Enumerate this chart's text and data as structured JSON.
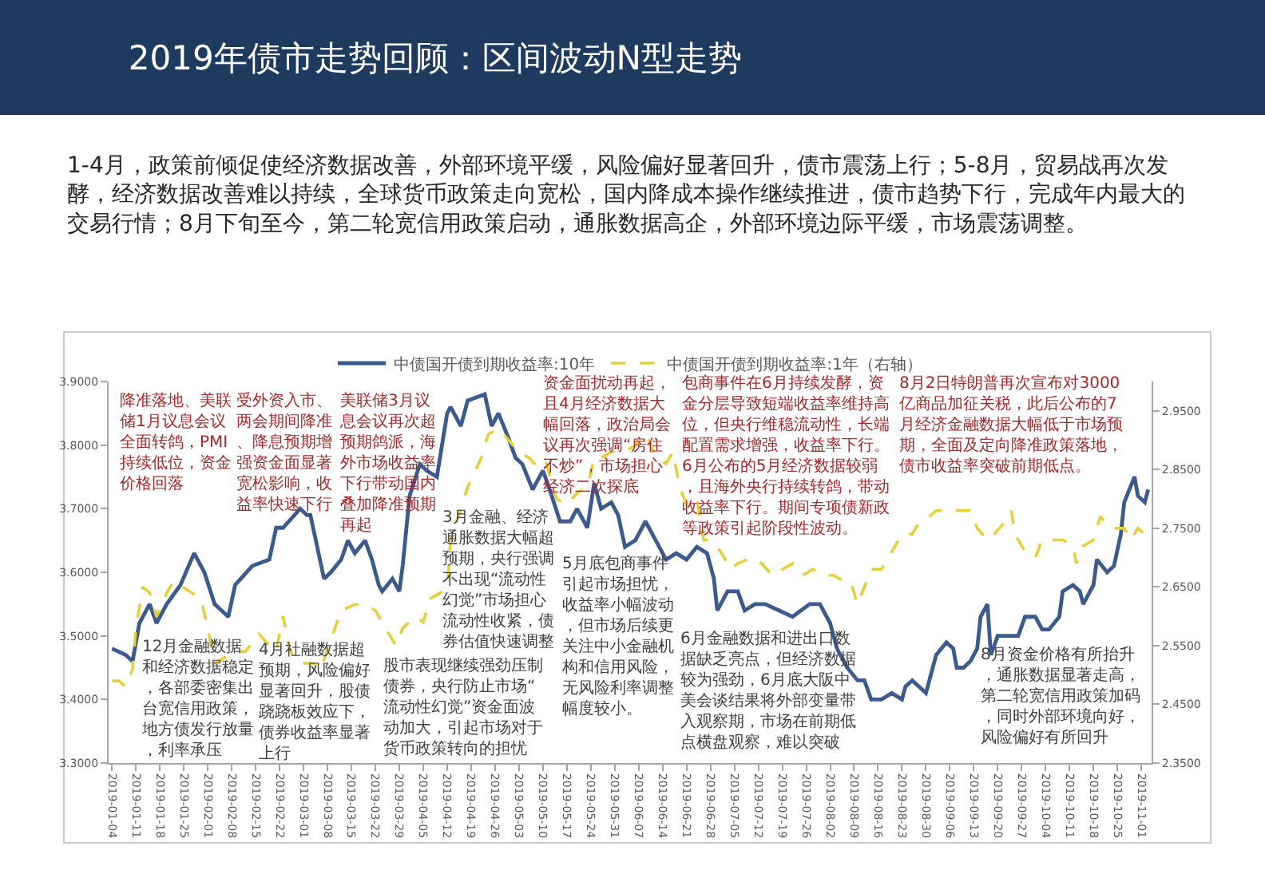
{
  "chart_data": {
    "type": "line",
    "title": "2019年债市走势回顾：区间波动N型走势",
    "subtitle": "1-4月，政策前倾促使经济数据改善，外部环境平缓，风险偏好显著回升，债市震荡上行；5-8月，贸易战再次发酵，经济数据改善难以持续，全球货币政策走向宽松，国内降成本操作继续推进，债市趋势下行，完成年内最大的交易行情；8月下旬至今，第二轮宽信用政策启动，通胀数据高企，外部环境边际平缓，市场震荡调整。",
    "series": [
      {
        "name": "中债国开债到期收益率:10年",
        "color": "#3b5a8e",
        "line_style": "solid",
        "x": [
          "2019-01-04",
          "2019-01-08",
          "2019-01-10",
          "2019-01-12",
          "2019-01-15",
          "2019-01-17",
          "2019-01-20",
          "2019-01-24",
          "2019-01-28",
          "2019-01-31",
          "2019-02-03",
          "2019-02-07",
          "2019-02-09",
          "2019-02-14",
          "2019-02-19",
          "2019-02-21",
          "2019-02-23",
          "2019-02-28",
          "2019-03-02",
          "2019-03-03",
          "2019-03-07",
          "2019-03-09",
          "2019-03-12",
          "2019-03-14",
          "2019-03-16",
          "2019-03-19",
          "2019-03-21",
          "2019-03-23",
          "2019-03-24",
          "2019-03-27",
          "2019-03-29",
          "2019-03-30",
          "2019-04-01",
          "2019-04-04",
          "2019-04-06",
          "2019-04-09",
          "2019-04-12",
          "2019-04-13",
          "2019-04-16",
          "2019-04-18",
          "2019-04-23",
          "2019-04-25",
          "2019-04-27",
          "2019-04-30",
          "2019-05-02",
          "2019-05-04",
          "2019-05-07",
          "2019-05-10",
          "2019-05-12",
          "2019-05-15",
          "2019-05-18",
          "2019-05-20",
          "2019-05-23",
          "2019-05-25",
          "2019-05-27",
          "2019-05-30",
          "2019-06-01",
          "2019-06-03",
          "2019-06-06",
          "2019-06-09",
          "2019-06-12",
          "2019-06-15",
          "2019-06-18",
          "2019-06-21",
          "2019-06-24",
          "2019-06-27",
          "2019-06-29",
          "2019-06-30",
          "2019-07-03",
          "2019-07-06",
          "2019-07-08",
          "2019-07-11",
          "2019-07-14",
          "2019-07-18",
          "2019-07-22",
          "2019-07-27",
          "2019-07-30",
          "2019-08-02",
          "2019-08-04",
          "2019-08-07",
          "2019-08-10",
          "2019-08-12",
          "2019-08-14",
          "2019-08-17",
          "2019-08-20",
          "2019-08-23",
          "2019-08-24",
          "2019-08-26",
          "2019-08-30",
          "2019-09-02",
          "2019-09-05",
          "2019-09-07",
          "2019-09-08",
          "2019-09-10",
          "2019-09-12",
          "2019-09-14",
          "2019-09-15",
          "2019-09-17",
          "2019-09-18",
          "2019-09-20",
          "2019-09-24",
          "2019-09-26",
          "2019-09-28",
          "2019-10-01",
          "2019-10-03",
          "2019-10-05",
          "2019-10-08",
          "2019-10-09",
          "2019-10-12",
          "2019-10-14",
          "2019-10-15",
          "2019-10-18",
          "2019-10-19",
          "2019-10-22",
          "2019-10-24",
          "2019-10-26",
          "2019-10-27",
          "2019-10-30",
          "2019-10-31",
          "2019-11-02",
          "2019-11-03"
        ],
        "values": [
          3.48,
          3.47,
          3.46,
          3.52,
          3.55,
          3.52,
          3.55,
          3.58,
          3.63,
          3.6,
          3.55,
          3.53,
          3.58,
          3.61,
          3.62,
          3.67,
          3.67,
          3.7,
          3.69,
          3.69,
          3.59,
          3.6,
          3.62,
          3.65,
          3.63,
          3.65,
          3.62,
          3.58,
          3.57,
          3.59,
          3.57,
          3.61,
          3.72,
          3.77,
          3.76,
          3.75,
          3.85,
          3.86,
          3.83,
          3.87,
          3.88,
          3.83,
          3.85,
          3.81,
          3.78,
          3.77,
          3.73,
          3.76,
          3.73,
          3.68,
          3.68,
          3.7,
          3.67,
          3.74,
          3.7,
          3.71,
          3.69,
          3.64,
          3.65,
          3.68,
          3.65,
          3.62,
          3.63,
          3.62,
          3.64,
          3.63,
          3.59,
          3.54,
          3.57,
          3.57,
          3.54,
          3.55,
          3.55,
          3.54,
          3.53,
          3.55,
          3.55,
          3.52,
          3.48,
          3.45,
          3.43,
          3.43,
          3.4,
          3.4,
          3.41,
          3.4,
          3.42,
          3.43,
          3.41,
          3.47,
          3.49,
          3.48,
          3.45,
          3.45,
          3.46,
          3.48,
          3.53,
          3.55,
          3.47,
          3.5,
          3.5,
          3.5,
          3.53,
          3.53,
          3.51,
          3.51,
          3.53,
          3.57,
          3.58,
          3.57,
          3.55,
          3.58,
          3.62,
          3.6,
          3.61,
          3.66,
          3.71,
          3.75,
          3.72,
          3.71,
          3.73
        ]
      },
      {
        "name": "中债国开债到期收益率:1年（右轴）",
        "color": "#e6cf3c",
        "line_style": "dashed",
        "axis": "y2",
        "x": [
          "2019-01-04",
          "2019-01-06",
          "2019-01-08",
          "2019-01-10",
          "2019-01-11",
          "2019-01-13",
          "2019-01-15",
          "2019-01-17",
          "2019-01-20",
          "2019-01-22",
          "2019-01-30",
          "2019-02-01",
          "2019-02-03",
          "2019-02-06",
          "2019-02-09",
          "2019-02-12",
          "2019-02-16",
          "2019-02-19",
          "2019-02-21",
          "2019-02-23",
          "2019-02-25",
          "2019-02-28",
          "2019-03-04",
          "2019-03-06",
          "2019-03-09",
          "2019-03-12",
          "2019-03-16",
          "2019-03-19",
          "2019-03-22",
          "2019-03-25",
          "2019-03-28",
          "2019-03-30",
          "2019-04-03",
          "2019-04-05",
          "2019-04-07",
          "2019-04-10",
          "2019-04-12",
          "2019-04-13",
          "2019-04-18",
          "2019-04-22",
          "2019-04-24",
          "2019-04-27",
          "2019-04-30",
          "2019-05-03",
          "2019-05-06",
          "2019-05-09",
          "2019-05-11",
          "2019-05-14",
          "2019-05-17",
          "2019-05-20",
          "2019-05-23",
          "2019-05-25",
          "2019-05-27",
          "2019-05-30",
          "2019-06-02",
          "2019-06-06",
          "2019-06-08",
          "2019-06-10",
          "2019-06-12",
          "2019-06-15",
          "2019-06-17",
          "2019-06-19",
          "2019-06-21",
          "2019-06-24",
          "2019-06-26",
          "2019-06-28",
          "2019-07-01",
          "2019-07-04",
          "2019-07-06",
          "2019-07-10",
          "2019-07-13",
          "2019-07-16",
          "2019-07-19",
          "2019-07-22",
          "2019-07-25",
          "2019-07-28",
          "2019-07-31",
          "2019-08-03",
          "2019-08-06",
          "2019-08-08",
          "2019-08-10",
          "2019-08-14",
          "2019-08-17",
          "2019-08-20",
          "2019-08-23",
          "2019-08-26",
          "2019-08-28",
          "2019-08-31",
          "2019-09-02",
          "2019-09-05",
          "2019-09-08",
          "2019-09-12",
          "2019-09-14",
          "2019-09-17",
          "2019-09-19",
          "2019-09-22",
          "2019-09-24",
          "2019-09-25",
          "2019-09-28",
          "2019-10-01",
          "2019-10-03",
          "2019-10-06",
          "2019-10-09",
          "2019-10-12",
          "2019-10-13",
          "2019-10-15",
          "2019-10-18",
          "2019-10-20",
          "2019-10-23",
          "2019-10-25",
          "2019-10-27",
          "2019-10-29",
          "2019-10-31",
          "2019-11-02"
        ],
        "values": [
          2.49,
          2.49,
          2.48,
          2.51,
          2.58,
          2.65,
          2.64,
          2.6,
          2.64,
          2.66,
          2.63,
          2.58,
          2.52,
          2.53,
          2.54,
          2.54,
          2.57,
          2.55,
          2.54,
          2.6,
          2.54,
          2.52,
          2.52,
          2.51,
          2.56,
          2.61,
          2.62,
          2.62,
          2.61,
          2.58,
          2.55,
          2.58,
          2.6,
          2.59,
          2.63,
          2.64,
          2.65,
          2.73,
          2.82,
          2.87,
          2.91,
          2.92,
          2.9,
          2.88,
          2.87,
          2.85,
          2.86,
          2.8,
          2.79,
          2.81,
          2.82,
          2.87,
          2.87,
          2.88,
          2.88,
          2.89,
          2.91,
          2.9,
          2.87,
          2.86,
          2.88,
          2.82,
          2.79,
          2.8,
          2.73,
          2.73,
          2.71,
          2.68,
          2.69,
          2.7,
          2.69,
          2.67,
          2.68,
          2.69,
          2.67,
          2.68,
          2.67,
          2.67,
          2.66,
          2.66,
          2.62,
          2.68,
          2.68,
          2.71,
          2.74,
          2.74,
          2.76,
          2.77,
          2.78,
          2.78,
          2.78,
          2.78,
          2.75,
          2.73,
          2.74,
          2.76,
          2.78,
          2.74,
          2.71,
          2.7,
          2.73,
          2.73,
          2.73,
          2.72,
          2.69,
          2.72,
          2.73,
          2.77,
          2.75,
          2.75,
          2.75,
          2.73,
          2.75,
          2.74
        ]
      }
    ],
    "xlim": [
      "2019-01-03",
      "2019-11-04"
    ],
    "xticks": [
      "2019-01-04",
      "2019-01-11",
      "2019-01-18",
      "2019-01-25",
      "2019-02-01",
      "2019-02-08",
      "2019-02-15",
      "2019-02-22",
      "2019-03-01",
      "2019-03-08",
      "2019-03-15",
      "2019-03-22",
      "2019-03-29",
      "2019-04-05",
      "2019-04-12",
      "2019-04-19",
      "2019-04-26",
      "2019-05-03",
      "2019-05-10",
      "2019-05-17",
      "2019-05-24",
      "2019-05-31",
      "2019-06-07",
      "2019-06-14",
      "2019-06-21",
      "2019-06-28",
      "2019-07-05",
      "2019-07-12",
      "2019-07-19",
      "2019-07-26",
      "2019-08-02",
      "2019-08-09",
      "2019-08-16",
      "2019-08-23",
      "2019-08-30",
      "2019-09-06",
      "2019-09-13",
      "2019-09-20",
      "2019-09-27",
      "2019-10-04",
      "2019-10-11",
      "2019-10-18",
      "2019-10-25",
      "2019-11-01"
    ],
    "ylim": [
      3.3,
      3.9
    ],
    "yticks": [
      {
        "value": 3.3,
        "label": "3.3000"
      },
      {
        "value": 3.4,
        "label": "3.4000"
      },
      {
        "value": 3.5,
        "label": "3.5000"
      },
      {
        "value": 3.6,
        "label": "3.6000"
      },
      {
        "value": 3.7,
        "label": "3.7000"
      },
      {
        "value": 3.8,
        "label": "3.8000"
      },
      {
        "value": 3.9,
        "label": "3.9000"
      }
    ],
    "y2lim": [
      2.35,
      3.0
    ],
    "y2ticks": [
      {
        "value": 2.35,
        "label": "2.3500"
      },
      {
        "value": 2.45,
        "label": "2.4500"
      },
      {
        "value": 2.55,
        "label": "2.5500"
      },
      {
        "value": 2.65,
        "label": "2.6500"
      },
      {
        "value": 2.75,
        "label": "2.7500"
      },
      {
        "value": 2.85,
        "label": "2.8500"
      },
      {
        "value": 2.95,
        "label": "2.9500"
      }
    ],
    "legend": "top",
    "marker": "none",
    "annotations": [
      "降准落地、美联储1月议息会议全面转鸽，PMI持续低位，资金价格回落",
      "受外资入市、两会期间降准、降息预期增强资金面显著宽松影响，收益率快速下行",
      "美联储3月议息会议再次超预期鸽派，海外市场收益率下行带动国内叠加降准预期再起",
      "资金面扰动再起，且4月经济数据大幅回落，政治局会议再次强调“房住不炒”，市场担心经济二次探底",
      "包商事件在6月持续发酵，资金分层导致短端收益率维持高位，但央行维稳流动性，长端配置需求增强，收益率下行。6月公布的5月经济数据较弱，且海外央行持续转鸽，带动收益率下行。期间专项债新政等政策引起阶段性波动。",
      "8月2日特朗普再次宣布对3000亿商品加征关税，此后公布的7月经济金融数据大幅低于市场预期，全面及定向降准政策落地，债市收益率突破前期低点。",
      "12月金融数据和经济数据稳定，各部委密集出台宽信用政策，地方债发行放量，利率承压",
      "4月社融数据超预期，风险偏好显著回升，股债跷跷板效应下，债券收益率显著上行",
      "股市表现继续强劲压制债券，央行防止市场“流动性幻觉”资金面波动加大，引起市场对于货币政策转向的担忧",
      "3月金融、经济通胀数据大幅超预期，央行强调不出现“流动性幻觉”市场担心流动性收紧，债券估值快速调整",
      "5月底包商事件引起市场担忧，收益率小幅波动，但市场后续更关注中小金融机构和信用风险，无风险利率调整幅度较小。",
      "6月金融数据和进出口数据缺乏亮点，但经济数据较为强劲，6月底大阪中美会谈结果将外部变量带入观察期，市场在前期低点横盘观察，难以突破",
      "8月资金价格有所抬升，通胀数据显著走高，第二轮宽信用政策加码，同时外部环境向好，风险偏好有所回升"
    ]
  }
}
